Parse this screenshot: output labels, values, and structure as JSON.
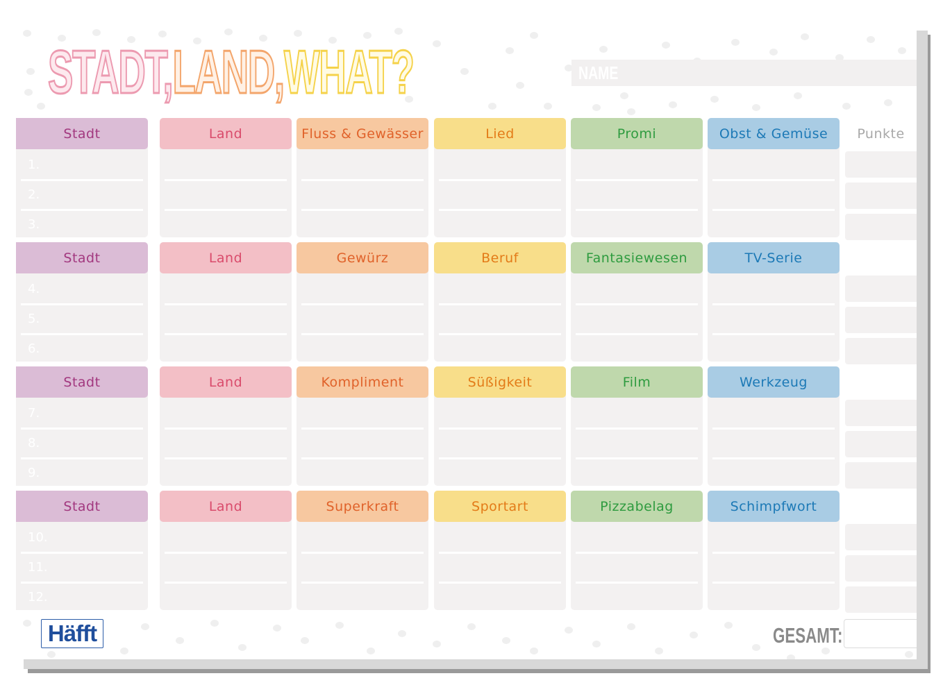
{
  "title": {
    "part1": "STADT,",
    "part2": "LAND,",
    "part3": "WHAT?"
  },
  "name_label": "NAME",
  "points_header": "Punkte",
  "total_label": "GESAMT:",
  "brand": "Häfft",
  "colors": {
    "stadt_bg": "#dbbcd6",
    "stadt_text": "#a2387f",
    "land_bg": "#f3bfc6",
    "land_text": "#d94b6b",
    "orange_bg": "#f7c8a0",
    "orange_text": "#e0622a",
    "yellow_bg": "#f8de8a",
    "yellow_text": "#e37b18",
    "green_bg": "#bfd8ac",
    "green_text": "#2e9b3f",
    "blue_bg": "#a9cce4",
    "blue_text": "#1c79b6"
  },
  "blocks": [
    {
      "headers": [
        "Stadt",
        "Land",
        "Fluss & Gewässer",
        "Lied",
        "Promi",
        "Obst & Gemüse"
      ],
      "rows": [
        "1.",
        "2.",
        "3."
      ]
    },
    {
      "headers": [
        "Stadt",
        "Land",
        "Gewürz",
        "Beruf",
        "Fantasiewesen",
        "TV-Serie"
      ],
      "rows": [
        "4.",
        "5.",
        "6."
      ]
    },
    {
      "headers": [
        "Stadt",
        "Land",
        "Kompliment",
        "Süßigkeit",
        "Film",
        "Werkzeug"
      ],
      "rows": [
        "7.",
        "8.",
        "9."
      ]
    },
    {
      "headers": [
        "Stadt",
        "Land",
        "Superkraft",
        "Sportart",
        "Pizzabelag",
        "Schimpfwort"
      ],
      "rows": [
        "10.",
        "11.",
        "12."
      ]
    }
  ]
}
